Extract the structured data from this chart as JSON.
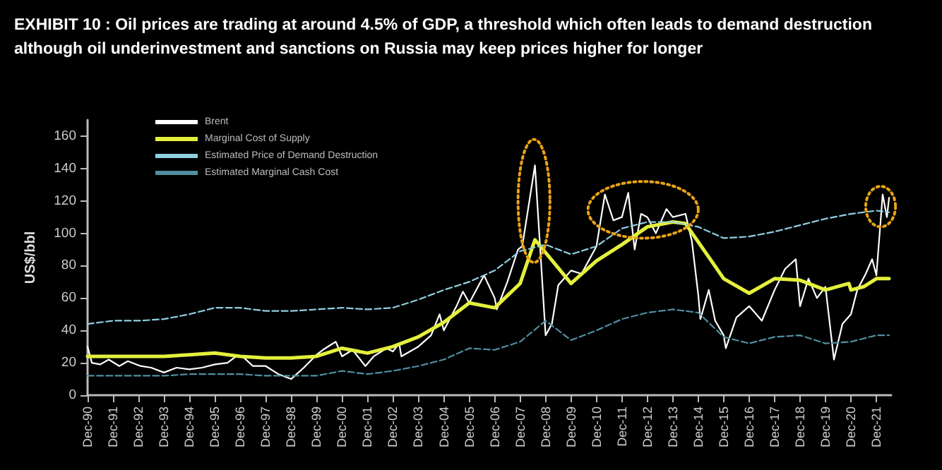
{
  "chart_data": {
    "type": "line",
    "title": "EXHIBIT 10 :  Oil prices are trading at around 4.5% of GDP, a threshold which often leads to demand destruction although oil underinvestment and sanctions on Russia may keep prices higher for longer",
    "ylabel": "US$/bbl",
    "ylim": [
      0,
      170
    ],
    "yticks": [
      0,
      20,
      40,
      60,
      80,
      100,
      120,
      140,
      160
    ],
    "xlim": [
      "1990-12",
      "2022-07"
    ],
    "xticks": [
      {
        "value": "1990-12",
        "label": "Dec-90"
      },
      {
        "value": "1991-12",
        "label": "Dec-91"
      },
      {
        "value": "1992-12",
        "label": "Dec-92"
      },
      {
        "value": "1993-12",
        "label": "Dec-93"
      },
      {
        "value": "1994-12",
        "label": "Dec-94"
      },
      {
        "value": "1995-12",
        "label": "Dec-95"
      },
      {
        "value": "1996-12",
        "label": "Dec-96"
      },
      {
        "value": "1997-12",
        "label": "Dec-97"
      },
      {
        "value": "1998-12",
        "label": "Dec-98"
      },
      {
        "value": "1999-12",
        "label": "Dec-99"
      },
      {
        "value": "2000-12",
        "label": "Dec-00"
      },
      {
        "value": "2001-12",
        "label": "Dec-01"
      },
      {
        "value": "2002-12",
        "label": "Dec-02"
      },
      {
        "value": "2003-12",
        "label": "Dec-03"
      },
      {
        "value": "2004-12",
        "label": "Dec-04"
      },
      {
        "value": "2005-12",
        "label": "Dec-05"
      },
      {
        "value": "2006-12",
        "label": "Dec-06"
      },
      {
        "value": "2007-12",
        "label": "Dec-07"
      },
      {
        "value": "2008-12",
        "label": "Dec-08"
      },
      {
        "value": "2009-12",
        "label": "Dec-09"
      },
      {
        "value": "2010-12",
        "label": "Dec-10"
      },
      {
        "value": "2011-12",
        "label": "Dec-11"
      },
      {
        "value": "2012-12",
        "label": "Dec-12"
      },
      {
        "value": "2013-12",
        "label": "Dec-13"
      },
      {
        "value": "2014-12",
        "label": "Dec-14"
      },
      {
        "value": "2015-12",
        "label": "Dec-15"
      },
      {
        "value": "2016-12",
        "label": "Dec-16"
      },
      {
        "value": "2017-12",
        "label": "Dec-17"
      },
      {
        "value": "2018-12",
        "label": "Dec-18"
      },
      {
        "value": "2019-12",
        "label": "Dec-19"
      },
      {
        "value": "2020-12",
        "label": "Dec-20"
      },
      {
        "value": "2021-12",
        "label": "Dec-21"
      }
    ],
    "grid": false,
    "legend": "top left",
    "marker": "none",
    "series": [
      {
        "name": "Brent",
        "color": "#ffffff",
        "line_style": "solid",
        "x": [
          "1990-12",
          "1991-02",
          "1991-06",
          "1991-10",
          "1992-03",
          "1992-07",
          "1993-01",
          "1993-06",
          "1993-12",
          "1994-06",
          "1994-12",
          "1995-06",
          "1995-12",
          "1996-06",
          "1996-10",
          "1997-01",
          "1997-06",
          "1997-12",
          "1998-06",
          "1998-12",
          "1999-06",
          "1999-12",
          "2000-03",
          "2000-09",
          "2000-12",
          "2001-05",
          "2001-11",
          "2002-03",
          "2002-09",
          "2002-12",
          "2003-03",
          "2003-04",
          "2003-12",
          "2004-06",
          "2004-10",
          "2004-12",
          "2005-06",
          "2005-09",
          "2005-12",
          "2006-07",
          "2006-12",
          "2007-01",
          "2007-06",
          "2007-11",
          "2008-01",
          "2008-07",
          "2008-12",
          "2009-03",
          "2009-06",
          "2009-12",
          "2010-05",
          "2010-12",
          "2011-04",
          "2011-08",
          "2011-12",
          "2012-03",
          "2012-06",
          "2012-09",
          "2012-12",
          "2013-04",
          "2013-09",
          "2013-12",
          "2014-06",
          "2014-09",
          "2014-12",
          "2015-01",
          "2015-05",
          "2015-08",
          "2015-12",
          "2016-01",
          "2016-06",
          "2016-12",
          "2017-06",
          "2017-12",
          "2018-05",
          "2018-10",
          "2018-12",
          "2019-04",
          "2019-08",
          "2019-12",
          "2020-04",
          "2020-08",
          "2020-12",
          "2021-03",
          "2021-07",
          "2021-10",
          "2021-12",
          "2022-03",
          "2022-05",
          "2022-06"
        ],
        "values": [
          30,
          20,
          19,
          22,
          18,
          21,
          18,
          17,
          14,
          17,
          16,
          17,
          19,
          20,
          24,
          24,
          18,
          18,
          13,
          10,
          17,
          25,
          28,
          33,
          24,
          28,
          18,
          24,
          29,
          27,
          32,
          24,
          30,
          37,
          50,
          40,
          55,
          64,
          57,
          74,
          60,
          53,
          70,
          90,
          92,
          142,
          37,
          44,
          68,
          77,
          75,
          92,
          124,
          108,
          110,
          125,
          90,
          112,
          110,
          100,
          115,
          110,
          112,
          95,
          62,
          47,
          65,
          46,
          37,
          29,
          48,
          55,
          46,
          65,
          78,
          84,
          55,
          72,
          60,
          67,
          22,
          44,
          50,
          65,
          75,
          84,
          74,
          124,
          110,
          122
        ]
      },
      {
        "name": "Marginal Cost of Supply",
        "color": "#e4f03c",
        "line_style": "solid",
        "x": [
          "1990-12",
          "1991-12",
          "1992-12",
          "1993-12",
          "1994-12",
          "1995-12",
          "1996-12",
          "1997-12",
          "1998-12",
          "1999-12",
          "2000-12",
          "2001-12",
          "2002-12",
          "2003-12",
          "2004-12",
          "2005-12",
          "2006-12",
          "2007-12",
          "2008-07",
          "2009-12",
          "2010-12",
          "2011-12",
          "2012-12",
          "2013-12",
          "2014-06",
          "2015-12",
          "2016-12",
          "2017-12",
          "2018-12",
          "2019-12",
          "2020-11",
          "2020-12",
          "2021-06",
          "2021-12",
          "2022-06"
        ],
        "values": [
          24,
          24,
          24,
          24,
          25,
          26,
          24,
          23,
          23,
          24,
          29,
          26,
          30,
          36,
          45,
          57,
          54,
          69,
          96,
          69,
          83,
          93,
          104,
          107,
          106,
          72,
          63,
          72,
          71,
          65,
          69,
          65,
          67,
          72,
          72
        ]
      },
      {
        "name": "Estimated Price of Demand Destruction",
        "color": "#8fcfe0",
        "line_style": "dashed",
        "x": [
          "1990-12",
          "1991-12",
          "1992-12",
          "1993-12",
          "1994-12",
          "1995-12",
          "1996-12",
          "1997-12",
          "1998-12",
          "1999-12",
          "2000-12",
          "2001-12",
          "2002-12",
          "2003-12",
          "2004-12",
          "2005-12",
          "2006-12",
          "2007-12",
          "2008-12",
          "2009-12",
          "2010-12",
          "2011-12",
          "2012-12",
          "2013-12",
          "2014-12",
          "2015-12",
          "2016-12",
          "2017-12",
          "2018-12",
          "2019-12",
          "2020-12",
          "2021-12",
          "2022-06"
        ],
        "values": [
          44,
          46,
          46,
          47,
          50,
          54,
          54,
          52,
          52,
          53,
          54,
          53,
          54,
          59,
          65,
          70,
          77,
          89,
          93,
          87,
          92,
          103,
          107,
          107,
          104,
          97,
          98,
          101,
          105,
          109,
          112,
          114,
          113
        ]
      },
      {
        "name": "Estimated Marginal Cash Cost",
        "color": "#4f8f9f",
        "line_style": "dashed",
        "x": [
          "1990-12",
          "1991-12",
          "1992-12",
          "1993-12",
          "1994-12",
          "1995-12",
          "1996-12",
          "1997-12",
          "1998-12",
          "1999-12",
          "2000-12",
          "2001-12",
          "2002-12",
          "2003-12",
          "2004-12",
          "2005-12",
          "2006-12",
          "2007-12",
          "2008-12",
          "2009-12",
          "2010-12",
          "2011-12",
          "2012-12",
          "2013-12",
          "2014-12",
          "2015-12",
          "2016-12",
          "2017-12",
          "2018-12",
          "2019-12",
          "2020-12",
          "2021-12",
          "2022-06"
        ],
        "values": [
          12,
          12,
          12,
          12,
          13,
          13,
          13,
          12,
          12,
          12,
          15,
          13,
          15,
          18,
          22,
          29,
          28,
          33,
          46,
          34,
          40,
          47,
          51,
          53,
          51,
          36,
          32,
          36,
          37,
          32,
          33,
          37,
          37
        ]
      }
    ]
  }
}
